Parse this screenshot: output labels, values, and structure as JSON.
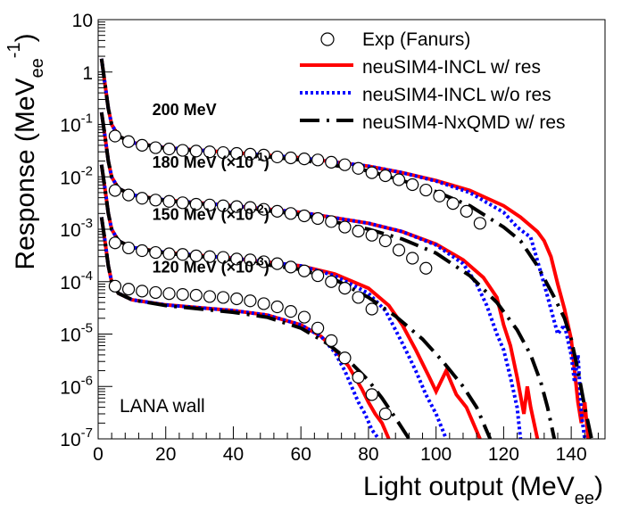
{
  "chart_data": {
    "type": "line",
    "title": "",
    "xlabel": "Light output (MeVee)",
    "ylabel": "Response (MeVee-1)",
    "x_label_main": "Light output (MeV",
    "x_label_sub": "ee",
    "x_label_close": ")",
    "y_label_main": "Response (MeV",
    "y_label_sub": "ee",
    "y_label_sup": "-1",
    "y_label_close": ")",
    "xlim": [
      0,
      150
    ],
    "ylim": [
      1e-07,
      10
    ],
    "yscale": "log",
    "x_ticks": [
      0,
      20,
      40,
      60,
      80,
      100,
      120,
      140
    ],
    "x_tick_labels": [
      "0",
      "20",
      "40",
      "60",
      "80",
      "100",
      "120",
      "140"
    ],
    "y_ticks": [
      1e-07,
      1e-06,
      1e-05,
      0.0001,
      0.001,
      0.01,
      0.1,
      1,
      10
    ],
    "y_tick_labels": [
      {
        "base": "10",
        "exp": "-7"
      },
      {
        "base": "10",
        "exp": "-6"
      },
      {
        "base": "10",
        "exp": "-5"
      },
      {
        "base": "10",
        "exp": "-4"
      },
      {
        "base": "10",
        "exp": "-3"
      },
      {
        "base": "10",
        "exp": "-2"
      },
      {
        "base": "10",
        "exp": "-1"
      },
      {
        "base": "1",
        "exp": ""
      },
      {
        "base": "10",
        "exp": ""
      }
    ],
    "annotation": "LANA wall",
    "legend_position": "top-right",
    "legend": [
      {
        "label": "Exp (Fanurs)",
        "style": "marker-circle",
        "color": "#000000"
      },
      {
        "label": "neuSIM4-INCL w/ res",
        "style": "solid",
        "color": "#ff0000"
      },
      {
        "label": "neuSIM4-INCL w/o res",
        "style": "dotted",
        "color": "#0000ff"
      },
      {
        "label": "neuSIM4-NxQMD w/ res",
        "style": "dash-dot",
        "color": "#000000"
      }
    ],
    "energy_labels": [
      {
        "text": "200 MeV",
        "factor": ""
      },
      {
        "text": "180 MeV (×10",
        "factor": "-1"
      },
      {
        "text": "150 MeV (×10",
        "factor": "-2"
      },
      {
        "text": "120 MeV (×10",
        "factor": "-3"
      }
    ],
    "energy_label_anchor": [
      {
        "x": 16,
        "y": 0.15
      },
      {
        "x": 16,
        "y": 0.015
      },
      {
        "x": 16,
        "y": 0.0015
      },
      {
        "x": 16,
        "y": 0.00015
      }
    ],
    "series": [
      {
        "name": "200 MeV",
        "exp": {
          "x": [
            5,
            9,
            13,
            17,
            21,
            25,
            29,
            33,
            37,
            41,
            45,
            49,
            53,
            57,
            61,
            65,
            69,
            73,
            77,
            81,
            85,
            89,
            93,
            97,
            101,
            105,
            109,
            113
          ],
          "y": [
            0.06,
            0.047,
            0.04,
            0.036,
            0.034,
            0.032,
            0.031,
            0.03,
            0.029,
            0.028,
            0.027,
            0.026,
            0.024,
            0.023,
            0.022,
            0.021,
            0.019,
            0.017,
            0.0145,
            0.012,
            0.0105,
            0.0088,
            0.0071,
            0.0056,
            0.0043,
            0.0031,
            0.0022,
            0.0013
          ]
        },
        "incl_res": {
          "x": [
            1,
            2,
            3,
            4,
            6,
            10,
            20,
            40,
            60,
            80,
            90,
            100,
            110,
            120,
            125,
            130,
            132,
            134,
            136,
            138,
            140,
            141,
            142,
            143,
            144,
            145
          ],
          "y": [
            1.8,
            0.6,
            0.2,
            0.1,
            0.06,
            0.045,
            0.036,
            0.029,
            0.023,
            0.016,
            0.012,
            0.0085,
            0.0055,
            0.0028,
            0.0017,
            0.0009,
            0.0006,
            0.0003,
            9e-05,
            3e-05,
            8e-06,
            2e-06,
            5e-07,
            2e-07,
            5e-07,
            1e-07
          ]
        },
        "incl_nores": {
          "x": [
            1,
            2,
            3,
            4,
            6,
            10,
            20,
            40,
            60,
            80,
            90,
            100,
            110,
            120,
            124,
            128,
            130,
            132,
            134,
            136,
            138,
            140,
            141,
            142,
            143,
            144
          ],
          "y": [
            1.8,
            0.6,
            0.2,
            0.1,
            0.06,
            0.045,
            0.036,
            0.029,
            0.023,
            0.016,
            0.012,
            0.0083,
            0.005,
            0.0021,
            0.0011,
            0.0007,
            0.00025,
            9e-05,
            3e-05,
            1e-05,
            1.5e-05,
            4e-06,
            1.2e-06,
            4e-06,
            3e-07,
            1e-07
          ]
        },
        "nxqmd": {
          "x": [
            1,
            2,
            3,
            4,
            6,
            10,
            20,
            40,
            60,
            80,
            90,
            100,
            110,
            120,
            125,
            130,
            135,
            138,
            140,
            142,
            144,
            146
          ],
          "y": [
            1.8,
            0.6,
            0.2,
            0.1,
            0.06,
            0.045,
            0.035,
            0.028,
            0.021,
            0.013,
            0.0085,
            0.0052,
            0.0028,
            0.0011,
            0.0006,
            0.0002,
            5e-05,
            2e-05,
            8e-06,
            2e-06,
            4e-07,
            1e-07
          ]
        }
      },
      {
        "name": "180 MeV",
        "exp": {
          "x": [
            5,
            9,
            13,
            17,
            21,
            25,
            29,
            33,
            37,
            41,
            45,
            49,
            53,
            57,
            61,
            65,
            69,
            73,
            77,
            81,
            85,
            89,
            93,
            97
          ],
          "y": [
            0.0055,
            0.0045,
            0.0039,
            0.0036,
            0.0034,
            0.0032,
            0.003,
            0.0029,
            0.0028,
            0.0027,
            0.0026,
            0.0024,
            0.0022,
            0.002,
            0.0018,
            0.0016,
            0.0014,
            0.0011,
            0.00092,
            0.00077,
            0.0006,
            0.0004,
            0.00028,
            0.00018
          ]
        },
        "incl_res": {
          "x": [
            1,
            2,
            3,
            4,
            6,
            10,
            20,
            40,
            60,
            80,
            90,
            100,
            108,
            114,
            118,
            120,
            122,
            124,
            126,
            127,
            128,
            129,
            130
          ],
          "y": [
            0.17,
            0.06,
            0.02,
            0.01,
            0.006,
            0.0045,
            0.0036,
            0.0028,
            0.0021,
            0.0013,
            0.0009,
            0.00052,
            0.00026,
            0.00012,
            5e-05,
            1.5e-05,
            6e-06,
            1.5e-06,
            3e-07,
            1e-06,
            4e-07,
            2e-07,
            1e-07
          ]
        },
        "incl_nores": {
          "x": [
            1,
            2,
            3,
            4,
            6,
            10,
            20,
            40,
            60,
            80,
            90,
            100,
            108,
            112,
            115,
            118,
            120,
            122,
            124,
            125
          ],
          "y": [
            0.17,
            0.06,
            0.02,
            0.01,
            0.006,
            0.0045,
            0.0036,
            0.0028,
            0.0021,
            0.0013,
            0.0009,
            0.0005,
            0.00022,
            9e-05,
            3.5e-05,
            1e-05,
            5e-06,
            1.5e-06,
            4e-07,
            1e-07
          ]
        },
        "nxqmd": {
          "x": [
            1,
            2,
            3,
            4,
            6,
            10,
            20,
            40,
            60,
            80,
            90,
            100,
            110,
            118,
            124,
            128,
            131,
            133,
            135
          ],
          "y": [
            0.17,
            0.06,
            0.02,
            0.01,
            0.006,
            0.0045,
            0.0035,
            0.0027,
            0.0019,
            0.001,
            0.00065,
            0.00035,
            0.00013,
            4e-05,
            1.2e-05,
            4e-06,
            1.2e-06,
            4e-07,
            1e-07
          ]
        }
      },
      {
        "name": "150 MeV",
        "exp": {
          "x": [
            5,
            9,
            13,
            17,
            21,
            25,
            29,
            33,
            37,
            41,
            45,
            49,
            53,
            57,
            61,
            65,
            69,
            73,
            77,
            81
          ],
          "y": [
            0.00055,
            0.00044,
            0.00039,
            0.00036,
            0.00034,
            0.00033,
            0.00031,
            0.0003,
            0.00029,
            0.00027,
            0.00026,
            0.00024,
            0.00022,
            0.00019,
            0.00016,
            0.00013,
            0.0001,
            7.5e-05,
            5e-05,
            3e-05
          ]
        },
        "incl_res": {
          "x": [
            1,
            2,
            3,
            4,
            6,
            10,
            20,
            40,
            60,
            70,
            80,
            86,
            90,
            94,
            98,
            100,
            103,
            106,
            109,
            111,
            113
          ],
          "y": [
            0.017,
            0.006,
            0.002,
            0.001,
            0.0006,
            0.00045,
            0.00036,
            0.00028,
            0.0002,
            0.00014,
            7.5e-05,
            3.5e-05,
            1.5e-05,
            5e-06,
            1.5e-06,
            8e-07,
            2e-06,
            7e-07,
            4e-07,
            2e-07,
            1e-07
          ]
        },
        "incl_nores": {
          "x": [
            1,
            2,
            3,
            4,
            6,
            10,
            20,
            40,
            60,
            70,
            80,
            85,
            88,
            91,
            94,
            97,
            100,
            103
          ],
          "y": [
            0.017,
            0.006,
            0.002,
            0.001,
            0.0006,
            0.00045,
            0.00036,
            0.00028,
            0.0002,
            0.00013,
            6e-05,
            2.8e-05,
            1.2e-05,
            5e-06,
            2e-06,
            7e-07,
            3e-07,
            1e-07
          ]
        },
        "nxqmd": {
          "x": [
            1,
            2,
            3,
            4,
            6,
            10,
            20,
            40,
            60,
            70,
            80,
            88,
            96,
            102,
            108,
            112,
            116
          ],
          "y": [
            0.017,
            0.006,
            0.002,
            0.001,
            0.0006,
            0.00045,
            0.00035,
            0.00026,
            0.00017,
            0.00011,
            5e-05,
            2.2e-05,
            8e-06,
            3e-06,
            1e-06,
            4e-07,
            1e-07
          ]
        }
      },
      {
        "name": "120 MeV",
        "exp": {
          "x": [
            5,
            9,
            13,
            17,
            21,
            25,
            29,
            33,
            37,
            41,
            45,
            49,
            53,
            57,
            61,
            65,
            69,
            73,
            77,
            81,
            85
          ],
          "y": [
            8.2e-05,
            7.2e-05,
            6.6e-05,
            6.2e-05,
            5.9e-05,
            5.7e-05,
            5.5e-05,
            5.2e-05,
            5e-05,
            4.7e-05,
            4.3e-05,
            3.8e-05,
            3.3e-05,
            2.7e-05,
            2.1e-05,
            1.3e-05,
            7.5e-06,
            3.5e-06,
            1.5e-06,
            7e-07,
            3e-07
          ]
        },
        "incl_res": {
          "x": [
            1,
            2,
            3,
            4,
            6,
            10,
            20,
            40,
            50,
            60,
            66,
            70,
            74,
            76,
            78,
            80,
            82,
            84,
            86
          ],
          "y": [
            0.0017,
            0.0006,
            0.0002,
            0.0001,
            6e-05,
            4.5e-05,
            3.6e-05,
            2.8e-05,
            2.3e-05,
            1.5e-05,
            9e-06,
            5e-06,
            2.5e-06,
            1.5e-06,
            9e-07,
            5e-07,
            3e-07,
            2e-07,
            1e-07
          ]
        },
        "incl_nores": {
          "x": [
            1,
            2,
            3,
            4,
            6,
            10,
            20,
            40,
            50,
            60,
            66,
            70,
            73,
            75,
            77,
            79,
            81,
            83
          ],
          "y": [
            0.0017,
            0.0006,
            0.0002,
            0.0001,
            6e-05,
            4.5e-05,
            3.6e-05,
            2.8e-05,
            2.3e-05,
            1.5e-05,
            9e-06,
            4.5e-06,
            2e-06,
            1e-06,
            5e-07,
            3e-07,
            1.5e-07,
            1e-07
          ]
        },
        "nxqmd": {
          "x": [
            1,
            2,
            3,
            4,
            6,
            10,
            20,
            40,
            50,
            60,
            68,
            74,
            80,
            84,
            88,
            92
          ],
          "y": [
            0.0017,
            0.0006,
            0.0002,
            0.0001,
            6e-05,
            4.5e-05,
            3.5e-05,
            2.6e-05,
            2.1e-05,
            1.3e-05,
            6.5e-06,
            3.2e-06,
            1.3e-06,
            6e-07,
            2.5e-07,
            1e-07
          ]
        }
      }
    ]
  }
}
